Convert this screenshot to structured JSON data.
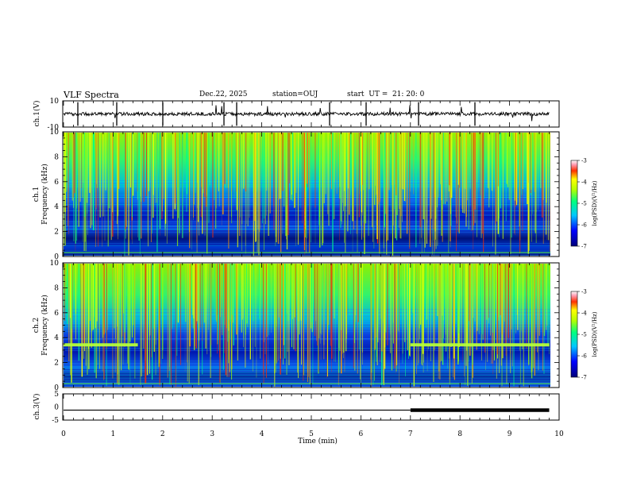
{
  "header": {
    "title": "VLF Spectra",
    "date": "Dec.22, 2025",
    "station": "station=OUJ",
    "start": "start  UT =  21: 20: 0"
  },
  "chart_data": [
    {
      "id": "ch1-waveform",
      "type": "line",
      "ylabel": "ch.1(V)",
      "ylim": [
        -10,
        10
      ],
      "y_ticks": [
        "10",
        "-10"
      ],
      "x_range": [
        0,
        10
      ],
      "trace_end": 9.8
    },
    {
      "id": "ch1-spectrogram",
      "type": "heatmap",
      "ylabel_lines": [
        "ch.1",
        "Frequency  (kHz)"
      ],
      "ylim": [
        0,
        10
      ],
      "y_ticks": [
        "0",
        "2",
        "4",
        "6",
        "8",
        "10"
      ],
      "colorbar": {
        "label": "log(PSD)(V²/Hz)",
        "range": [
          -7,
          -3
        ],
        "ticks": [
          "-3",
          "-4",
          "-5",
          "-6",
          "-7"
        ]
      },
      "noise_line_khz": [],
      "sferic_density": "high"
    },
    {
      "id": "ch2-spectrogram",
      "type": "heatmap",
      "ylabel_lines": [
        "ch.2",
        "Frequency  (kHz)"
      ],
      "ylim": [
        0,
        10
      ],
      "y_ticks": [
        "0",
        "2",
        "4",
        "6",
        "8",
        "10"
      ],
      "colorbar": {
        "label": "log(PSD)(V²/Hz)",
        "range": [
          -7,
          -3
        ],
        "ticks": [
          "-3",
          "-4",
          "-5",
          "-6",
          "-7"
        ]
      },
      "noise_line_khz": [
        3.4
      ],
      "noise_line_segments_min": [
        [
          0,
          1.5
        ],
        [
          7.0,
          9.8
        ]
      ]
    },
    {
      "id": "ch3-signal",
      "type": "line",
      "ylabel": "ch.3(V)",
      "ylim": [
        -5,
        5
      ],
      "y_ticks": [
        "5",
        "0",
        "-5"
      ],
      "level_v": -1.2,
      "thick_segment_min": [
        7.0,
        9.8
      ],
      "xlabel": "Time  (min)",
      "x_ticks": [
        "0",
        "1",
        "2",
        "3",
        "4",
        "5",
        "6",
        "7",
        "8",
        "9",
        "10"
      ],
      "xlim": [
        0,
        10
      ]
    }
  ]
}
